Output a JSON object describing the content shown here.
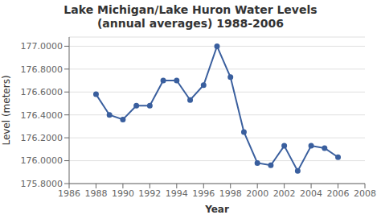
{
  "chart_data": {
    "type": "line",
    "title": "Lake Michigan/Lake Huron Water Levels\n(annual averages) 1988-2006",
    "xlabel": "Year",
    "ylabel": "Level (meters)",
    "x": [
      1988,
      1989,
      1990,
      1991,
      1992,
      1993,
      1994,
      1995,
      1996,
      1997,
      1998,
      1999,
      2000,
      2001,
      2002,
      2003,
      2004,
      2005,
      2006
    ],
    "values": [
      176.58,
      176.4,
      176.36,
      176.48,
      176.48,
      176.7,
      176.7,
      176.53,
      176.66,
      177.0,
      176.73,
      176.25,
      175.98,
      175.96,
      176.13,
      175.91,
      176.13,
      176.11,
      176.03
    ],
    "color": "#3A5F9E",
    "marker": "circle",
    "xlim": [
      1986,
      2008
    ],
    "ylim": [
      175.8,
      177.08
    ],
    "xticks": [
      1986,
      1988,
      1990,
      1992,
      1994,
      1996,
      1998,
      2000,
      2002,
      2004,
      2006,
      2008
    ],
    "yticks": [
      {
        "value": 175.8,
        "label": "175.8000"
      },
      {
        "value": 176.0,
        "label": "176.0000"
      },
      {
        "value": 176.2,
        "label": "176.2000"
      },
      {
        "value": 176.4,
        "label": "176.4000"
      },
      {
        "value": 176.6,
        "label": "176.6000"
      },
      {
        "value": 176.8,
        "label": "176.8000"
      },
      {
        "value": 177.0,
        "label": "177.0000"
      }
    ],
    "grid": true
  }
}
